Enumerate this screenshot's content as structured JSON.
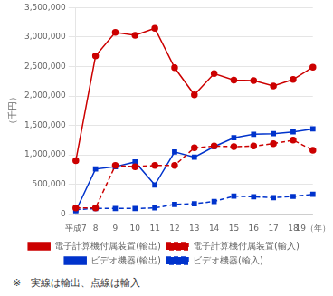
{
  "chart_data": {
    "type": "line",
    "ylabel": "（千円）",
    "annotations": [
      "※　実線は輸出、点線は輸入"
    ],
    "categories": [
      "平成7",
      "8",
      "9",
      "10",
      "11",
      "12",
      "13",
      "14",
      "15",
      "16",
      "17",
      "18",
      "19（年）"
    ],
    "series": [
      {
        "name": "電子計算機付属装置(輸出)",
        "color": "#cc0000",
        "line_style": "solid",
        "marker": "circle",
        "values": [
          900000,
          2680000,
          3080000,
          3030000,
          3150000,
          2480000,
          2020000,
          2380000,
          2270000,
          2260000,
          2170000,
          2280000,
          2490000
        ]
      },
      {
        "name": "電子計算機付属装置(輸入)",
        "color": "#cc0000",
        "line_style": "dashed",
        "marker": "circle",
        "values": [
          100000,
          100000,
          820000,
          800000,
          820000,
          820000,
          1120000,
          1150000,
          1140000,
          1150000,
          1190000,
          1250000,
          1080000
        ]
      },
      {
        "name": "ビデオ機器(輸出)",
        "color": "#0033cc",
        "line_style": "solid",
        "marker": "square",
        "values": [
          50000,
          760000,
          800000,
          880000,
          490000,
          1050000,
          960000,
          1140000,
          1290000,
          1350000,
          1360000,
          1390000,
          1440000
        ]
      },
      {
        "name": "ビデオ機器(輸入)",
        "color": "#0033cc",
        "line_style": "dashed",
        "marker": "square",
        "values": [
          70000,
          90000,
          90000,
          90000,
          100000,
          160000,
          170000,
          210000,
          300000,
          290000,
          275000,
          295000,
          330000
        ]
      }
    ],
    "ylim": [
      0,
      3500000
    ],
    "yticks": [
      0,
      {
        "value": 500000,
        "label": "500,000"
      },
      {
        "value": 1000000,
        "label": "1,000,000"
      },
      {
        "value": 1500000,
        "label": "1,500,000"
      },
      {
        "value": 2000000,
        "label": "2,000,000"
      },
      {
        "value": 2500000,
        "label": "2,500,000"
      },
      {
        "value": 3000000,
        "label": "3,000,000"
      },
      {
        "value": 3500000,
        "label": "3,500,000"
      }
    ],
    "grid": "y",
    "legend": "bottom"
  }
}
